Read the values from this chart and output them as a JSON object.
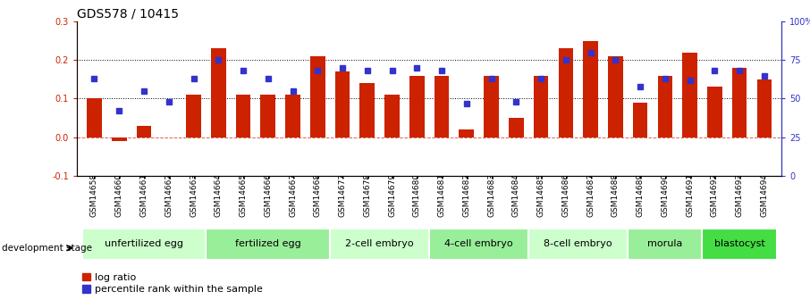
{
  "title": "GDS578 / 10415",
  "samples": [
    "GSM14658",
    "GSM14660",
    "GSM14661",
    "GSM14662",
    "GSM14663",
    "GSM14664",
    "GSM14665",
    "GSM14666",
    "GSM14667",
    "GSM14668",
    "GSM14677",
    "GSM14678",
    "GSM14679",
    "GSM14680",
    "GSM14681",
    "GSM14682",
    "GSM14683",
    "GSM14684",
    "GSM14685",
    "GSM14686",
    "GSM14687",
    "GSM14688",
    "GSM14689",
    "GSM14690",
    "GSM14691",
    "GSM14692",
    "GSM14693",
    "GSM14694"
  ],
  "log_ratio": [
    0.1,
    -0.01,
    0.03,
    0.0,
    0.11,
    0.23,
    0.11,
    0.11,
    0.11,
    0.21,
    0.17,
    0.14,
    0.11,
    0.16,
    0.16,
    0.02,
    0.16,
    0.05,
    0.16,
    0.23,
    0.25,
    0.21,
    0.09,
    0.16,
    0.22,
    0.13,
    0.18,
    0.15
  ],
  "percentile": [
    63,
    42,
    55,
    48,
    63,
    75,
    68,
    63,
    55,
    68,
    70,
    68,
    68,
    70,
    68,
    47,
    63,
    48,
    63,
    75,
    80,
    75,
    58,
    63,
    62,
    68,
    68,
    65
  ],
  "stages": [
    {
      "label": "unfertilized egg",
      "start": 0,
      "end": 5,
      "color": "#ccffcc"
    },
    {
      "label": "fertilized egg",
      "start": 5,
      "end": 10,
      "color": "#99ee99"
    },
    {
      "label": "2-cell embryo",
      "start": 10,
      "end": 14,
      "color": "#ccffcc"
    },
    {
      "label": "4-cell embryo",
      "start": 14,
      "end": 18,
      "color": "#99ee99"
    },
    {
      "label": "8-cell embryo",
      "start": 18,
      "end": 22,
      "color": "#ccffcc"
    },
    {
      "label": "morula",
      "start": 22,
      "end": 25,
      "color": "#99ee99"
    },
    {
      "label": "blastocyst",
      "start": 25,
      "end": 28,
      "color": "#44dd44"
    }
  ],
  "bar_color": "#cc2200",
  "square_color": "#3333cc",
  "ylim_left": [
    -0.1,
    0.3
  ],
  "ylim_right": [
    0,
    100
  ],
  "yticks_left": [
    -0.1,
    0.0,
    0.1,
    0.2,
    0.3
  ],
  "yticks_right": [
    0,
    25,
    50,
    75,
    100
  ],
  "title_fontsize": 10,
  "tick_fontsize": 7,
  "label_fontsize": 6.5,
  "stage_fontsize": 8,
  "legend_fontsize": 8
}
